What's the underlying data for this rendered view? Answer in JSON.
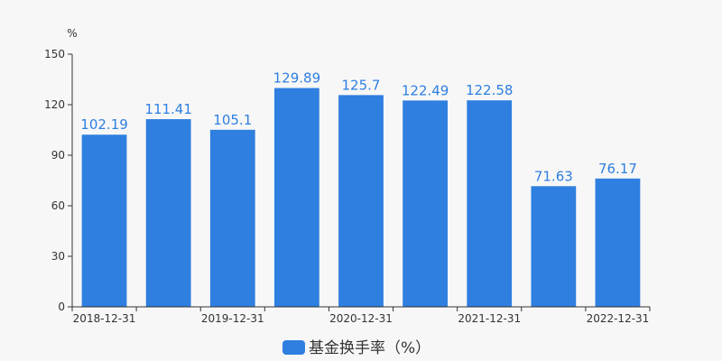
{
  "chart_data": {
    "type": "bar",
    "y_unit": "%",
    "ylim": [
      0,
      150
    ],
    "y_ticks": [
      0,
      30,
      60,
      90,
      120,
      150
    ],
    "categories": [
      "2018-12-31",
      "",
      "2019-12-31",
      "",
      "2020-12-31",
      "",
      "2021-12-31",
      "",
      "2022-12-31"
    ],
    "x_tick_labels": [
      "2018-12-31",
      "2019-12-31",
      "2020-12-31",
      "2021-12-31",
      "2022-12-31"
    ],
    "series": [
      {
        "name": "基金换手率（%）",
        "values": [
          102.19,
          111.41,
          105.1,
          129.89,
          125.7,
          122.49,
          122.58,
          71.63,
          76.17
        ],
        "value_labels": [
          "102.19",
          "111.41",
          "105.1",
          "129.89",
          "125.7",
          "122.49",
          "122.58",
          "71.63",
          "76.17"
        ]
      }
    ],
    "grid": false,
    "legend_position": "bottom",
    "colors": {
      "bar": "#2e7fe0",
      "value_label": "#2e7fe0",
      "axis": "#333333",
      "background": "#f7f7f7"
    }
  }
}
